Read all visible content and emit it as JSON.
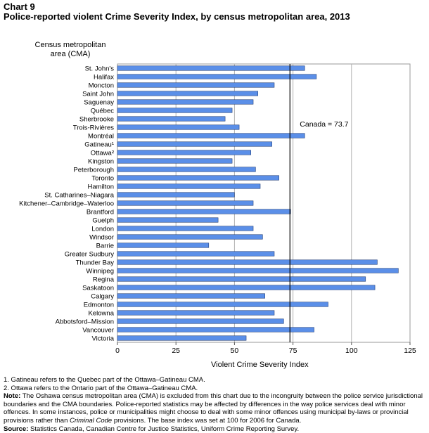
{
  "chart_label": "Chart 9",
  "chart_title": "Police-reported violent Crime Severity Index, by census metropolitan area, 2013",
  "chart_data": {
    "type": "bar",
    "orientation": "horizontal",
    "title": "Police-reported violent Crime Severity Index, by census metropolitan area, 2013",
    "xlabel": "Violent Crime Severity Index",
    "ylabel": "Census metropolitan area (CMA)",
    "xlim": [
      0,
      125
    ],
    "xticks": [
      0,
      25,
      50,
      75,
      100,
      125
    ],
    "grid": "vertical",
    "bar_color": "#5b8fe8",
    "categories": [
      "St. John's",
      "Halifax",
      "Moncton",
      "Saint John",
      "Saguenay",
      "Québec",
      "Sherbrooke",
      "Trois-Rivières",
      "Montréal",
      "Gatineau¹",
      "Ottawa²",
      "Kingston",
      "Peterborough",
      "Toronto",
      "Hamilton",
      "St. Catharines–Niagara",
      "Kitchener–Cambridge–Waterloo",
      "Brantford",
      "Guelph",
      "London",
      "Windsor",
      "Barrie",
      "Greater Sudbury",
      "Thunder Bay",
      "Winnipeg",
      "Regina",
      "Saskatoon",
      "Calgary",
      "Edmonton",
      "Kelowna",
      "Abbotsford–Mission",
      "Vancouver",
      "Victoria"
    ],
    "values": [
      80,
      85,
      67,
      60,
      58,
      49,
      46,
      52,
      80,
      66,
      57,
      49,
      59,
      69,
      61,
      50,
      58,
      74,
      43,
      58,
      62,
      39,
      67,
      111,
      120,
      106,
      110,
      63,
      90,
      67,
      71,
      84,
      55
    ],
    "reference_line": {
      "label": "Canada = 73.7",
      "value": 73.7
    }
  },
  "footnotes": {
    "note1": "1. Gatineau refers to the Quebec part of the Ottawa–Gatineau CMA.",
    "note2": "2. Ottawa refers to the Ontario part of the Ottawa–Gatineau CMA.",
    "note_label": "Note:",
    "note_text": " The Oshawa census metropolitan area (CMA) is excluded from this chart due to the incongruity between the police service jurisdictional boundaries and the CMA boundaries. Police-reported statistics may be affected by differences in the way police services deal with minor offences. In some instances, police or municipalities might choose to deal with some minor offences using municipal by-laws or provincial provisions rather than ",
    "note_italic": "Criminal Code",
    "note_text_end": " provisions. The base index was set at 100 for 2006 for Canada.",
    "source_label": "Source:",
    "source_text": " Statistics Canada, Canadian Centre for Justice Statistics, Uniform Crime Reporting Survey."
  }
}
